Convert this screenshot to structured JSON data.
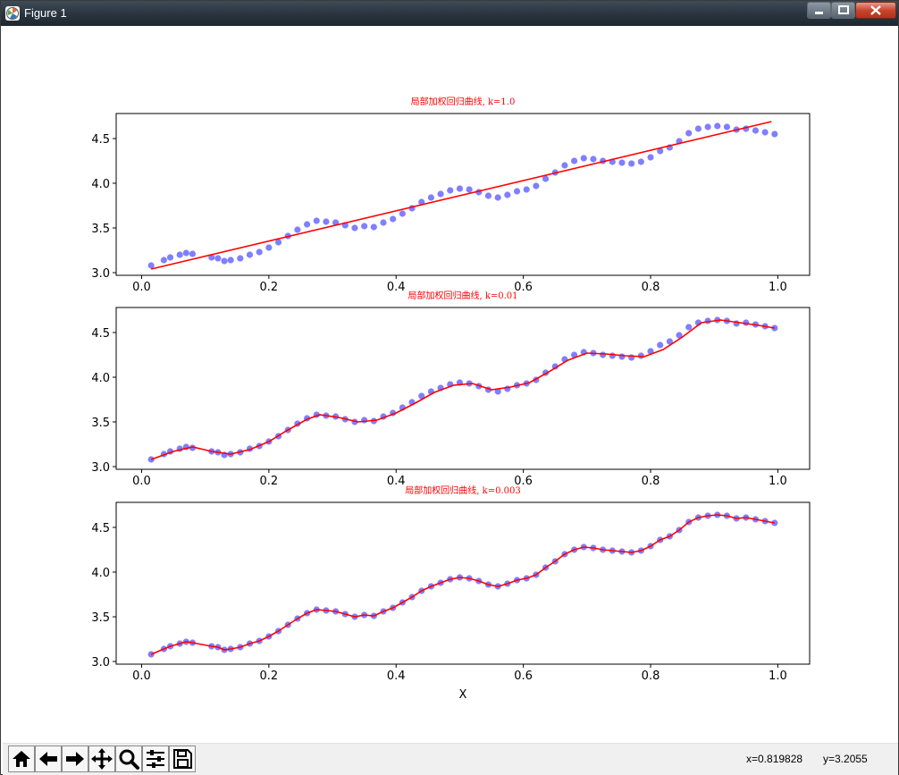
{
  "window": {
    "title": "Figure 1"
  },
  "figure": {
    "xlabel": "X",
    "ticks_x": [
      "0.0",
      "0.2",
      "0.4",
      "0.6",
      "0.8",
      "1.0"
    ],
    "ticks_y": [
      "3.0",
      "3.5",
      "4.0",
      "4.5"
    ]
  },
  "chart_data": [
    {
      "type": "scatter",
      "title": "局部加权回归曲线, k=1.0",
      "xlabel": "",
      "ylabel": "",
      "xlim": [
        -0.04,
        1.05
      ],
      "ylim": [
        2.97,
        4.78
      ],
      "grid": false,
      "point_color": "#0000ff",
      "line_color": "#ff0000",
      "x": [
        0.015,
        0.035,
        0.045,
        0.06,
        0.07,
        0.08,
        0.11,
        0.12,
        0.13,
        0.14,
        0.155,
        0.17,
        0.185,
        0.2,
        0.215,
        0.23,
        0.245,
        0.26,
        0.275,
        0.29,
        0.305,
        0.32,
        0.335,
        0.35,
        0.365,
        0.38,
        0.395,
        0.41,
        0.425,
        0.44,
        0.455,
        0.47,
        0.485,
        0.5,
        0.515,
        0.53,
        0.545,
        0.56,
        0.575,
        0.59,
        0.605,
        0.62,
        0.635,
        0.65,
        0.665,
        0.68,
        0.695,
        0.71,
        0.725,
        0.74,
        0.755,
        0.77,
        0.785,
        0.8,
        0.815,
        0.83,
        0.845,
        0.86,
        0.875,
        0.89,
        0.905,
        0.92,
        0.935,
        0.95,
        0.965,
        0.98,
        0.995
      ],
      "y": [
        3.08,
        3.14,
        3.17,
        3.2,
        3.22,
        3.21,
        3.17,
        3.16,
        3.13,
        3.14,
        3.16,
        3.2,
        3.23,
        3.28,
        3.34,
        3.41,
        3.48,
        3.54,
        3.58,
        3.57,
        3.56,
        3.53,
        3.5,
        3.52,
        3.51,
        3.56,
        3.6,
        3.66,
        3.72,
        3.79,
        3.84,
        3.88,
        3.92,
        3.94,
        3.93,
        3.9,
        3.86,
        3.84,
        3.87,
        3.91,
        3.93,
        3.97,
        4.05,
        4.12,
        4.2,
        4.25,
        4.28,
        4.27,
        4.25,
        4.24,
        4.23,
        4.22,
        4.24,
        4.29,
        4.36,
        4.4,
        4.47,
        4.56,
        4.61,
        4.63,
        4.64,
        4.63,
        4.6,
        4.61,
        4.59,
        4.57,
        4.55
      ],
      "fit_x": [
        0.015,
        0.99
      ],
      "fit_y": [
        3.04,
        4.69
      ]
    },
    {
      "type": "scatter",
      "title": "局部加权回归曲线, k=0.01",
      "xlabel": "",
      "ylabel": "",
      "xlim": [
        -0.04,
        1.05
      ],
      "ylim": [
        2.97,
        4.78
      ],
      "grid": false,
      "point_color": "#0000ff",
      "line_color": "#ff0000",
      "x": [
        0.015,
        0.035,
        0.045,
        0.06,
        0.07,
        0.08,
        0.11,
        0.12,
        0.13,
        0.14,
        0.155,
        0.17,
        0.185,
        0.2,
        0.215,
        0.23,
        0.245,
        0.26,
        0.275,
        0.29,
        0.305,
        0.32,
        0.335,
        0.35,
        0.365,
        0.38,
        0.395,
        0.41,
        0.425,
        0.44,
        0.455,
        0.47,
        0.485,
        0.5,
        0.515,
        0.53,
        0.545,
        0.56,
        0.575,
        0.59,
        0.605,
        0.62,
        0.635,
        0.65,
        0.665,
        0.68,
        0.695,
        0.71,
        0.725,
        0.74,
        0.755,
        0.77,
        0.785,
        0.8,
        0.815,
        0.83,
        0.845,
        0.86,
        0.875,
        0.89,
        0.905,
        0.92,
        0.935,
        0.95,
        0.965,
        0.98,
        0.995
      ],
      "y": [
        3.08,
        3.14,
        3.17,
        3.2,
        3.22,
        3.21,
        3.17,
        3.16,
        3.13,
        3.14,
        3.16,
        3.2,
        3.23,
        3.28,
        3.34,
        3.41,
        3.48,
        3.54,
        3.58,
        3.57,
        3.56,
        3.53,
        3.5,
        3.52,
        3.51,
        3.56,
        3.6,
        3.66,
        3.72,
        3.79,
        3.84,
        3.88,
        3.92,
        3.94,
        3.93,
        3.9,
        3.86,
        3.84,
        3.87,
        3.91,
        3.93,
        3.97,
        4.05,
        4.12,
        4.2,
        4.25,
        4.28,
        4.27,
        4.25,
        4.24,
        4.23,
        4.22,
        4.24,
        4.29,
        4.36,
        4.4,
        4.47,
        4.56,
        4.61,
        4.63,
        4.64,
        4.63,
        4.6,
        4.61,
        4.59,
        4.57,
        4.55
      ],
      "fit_x": [
        0.015,
        0.05,
        0.08,
        0.11,
        0.14,
        0.17,
        0.2,
        0.23,
        0.26,
        0.28,
        0.31,
        0.34,
        0.37,
        0.4,
        0.43,
        0.46,
        0.49,
        0.52,
        0.55,
        0.58,
        0.61,
        0.64,
        0.67,
        0.7,
        0.73,
        0.76,
        0.79,
        0.82,
        0.85,
        0.88,
        0.91,
        0.94,
        0.97,
        0.995
      ],
      "fit_y": [
        3.08,
        3.17,
        3.22,
        3.17,
        3.14,
        3.19,
        3.28,
        3.41,
        3.53,
        3.58,
        3.55,
        3.5,
        3.52,
        3.6,
        3.71,
        3.83,
        3.91,
        3.93,
        3.86,
        3.89,
        3.94,
        4.06,
        4.19,
        4.27,
        4.26,
        4.24,
        4.23,
        4.31,
        4.45,
        4.61,
        4.64,
        4.61,
        4.58,
        4.55
      ]
    },
    {
      "type": "scatter",
      "title": "局部加权回归曲线, k=0.003",
      "xlabel": "X",
      "ylabel": "",
      "xlim": [
        -0.04,
        1.05
      ],
      "ylim": [
        2.97,
        4.78
      ],
      "grid": false,
      "point_color": "#0000ff",
      "line_color": "#ff0000",
      "x": [
        0.015,
        0.035,
        0.045,
        0.06,
        0.07,
        0.08,
        0.11,
        0.12,
        0.13,
        0.14,
        0.155,
        0.17,
        0.185,
        0.2,
        0.215,
        0.23,
        0.245,
        0.26,
        0.275,
        0.29,
        0.305,
        0.32,
        0.335,
        0.35,
        0.365,
        0.38,
        0.395,
        0.41,
        0.425,
        0.44,
        0.455,
        0.47,
        0.485,
        0.5,
        0.515,
        0.53,
        0.545,
        0.56,
        0.575,
        0.59,
        0.605,
        0.62,
        0.635,
        0.65,
        0.665,
        0.68,
        0.695,
        0.71,
        0.725,
        0.74,
        0.755,
        0.77,
        0.785,
        0.8,
        0.815,
        0.83,
        0.845,
        0.86,
        0.875,
        0.89,
        0.905,
        0.92,
        0.935,
        0.95,
        0.965,
        0.98,
        0.995
      ],
      "y": [
        3.08,
        3.14,
        3.17,
        3.2,
        3.22,
        3.21,
        3.17,
        3.16,
        3.13,
        3.14,
        3.16,
        3.2,
        3.23,
        3.28,
        3.34,
        3.41,
        3.48,
        3.54,
        3.58,
        3.57,
        3.56,
        3.53,
        3.5,
        3.52,
        3.51,
        3.56,
        3.6,
        3.66,
        3.72,
        3.79,
        3.84,
        3.88,
        3.92,
        3.94,
        3.93,
        3.9,
        3.86,
        3.84,
        3.87,
        3.91,
        3.93,
        3.97,
        4.05,
        4.12,
        4.2,
        4.25,
        4.28,
        4.27,
        4.25,
        4.24,
        4.23,
        4.22,
        4.24,
        4.29,
        4.36,
        4.4,
        4.47,
        4.56,
        4.61,
        4.63,
        4.64,
        4.63,
        4.6,
        4.61,
        4.59,
        4.57,
        4.55
      ],
      "fit_x": [
        0.015,
        0.035,
        0.045,
        0.06,
        0.07,
        0.08,
        0.11,
        0.12,
        0.13,
        0.14,
        0.155,
        0.17,
        0.185,
        0.2,
        0.215,
        0.23,
        0.245,
        0.26,
        0.275,
        0.29,
        0.305,
        0.32,
        0.335,
        0.35,
        0.365,
        0.38,
        0.395,
        0.41,
        0.425,
        0.44,
        0.455,
        0.47,
        0.485,
        0.5,
        0.515,
        0.53,
        0.545,
        0.56,
        0.575,
        0.59,
        0.605,
        0.62,
        0.635,
        0.65,
        0.665,
        0.68,
        0.695,
        0.71,
        0.725,
        0.74,
        0.755,
        0.77,
        0.785,
        0.8,
        0.815,
        0.83,
        0.845,
        0.86,
        0.875,
        0.89,
        0.905,
        0.92,
        0.935,
        0.95,
        0.965,
        0.98,
        0.995
      ],
      "fit_y": [
        3.08,
        3.14,
        3.17,
        3.2,
        3.22,
        3.21,
        3.17,
        3.16,
        3.13,
        3.14,
        3.16,
        3.2,
        3.23,
        3.28,
        3.34,
        3.41,
        3.48,
        3.54,
        3.58,
        3.57,
        3.56,
        3.53,
        3.5,
        3.52,
        3.51,
        3.56,
        3.6,
        3.66,
        3.72,
        3.79,
        3.84,
        3.88,
        3.92,
        3.94,
        3.93,
        3.9,
        3.86,
        3.84,
        3.87,
        3.91,
        3.93,
        3.97,
        4.05,
        4.12,
        4.2,
        4.25,
        4.28,
        4.27,
        4.25,
        4.24,
        4.23,
        4.22,
        4.24,
        4.29,
        4.36,
        4.4,
        4.47,
        4.56,
        4.61,
        4.63,
        4.64,
        4.63,
        4.6,
        4.61,
        4.59,
        4.57,
        4.55
      ]
    }
  ],
  "toolbar": {
    "tools": [
      {
        "icon": "home-icon"
      },
      {
        "icon": "arrow-left-icon"
      },
      {
        "icon": "arrow-right-icon"
      },
      {
        "icon": "pan-icon"
      },
      {
        "icon": "zoom-icon"
      },
      {
        "icon": "configure-subplots-icon"
      },
      {
        "icon": "save-icon"
      }
    ]
  },
  "status": {
    "x_readout": "x=0.819828",
    "y_readout": "y=3.2055"
  }
}
